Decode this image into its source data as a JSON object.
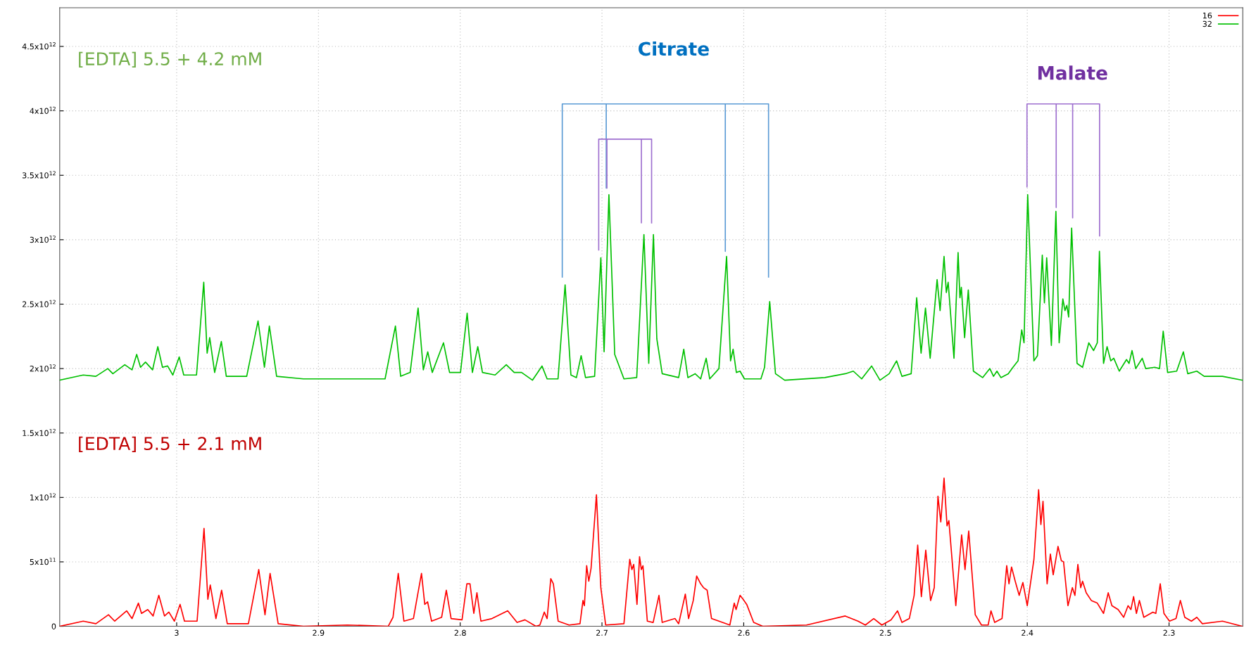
{
  "chart_data": {
    "type": "line",
    "xlim": [
      3.0825,
      2.248
    ],
    "ylim": [
      0,
      4800000000000.0
    ],
    "xticks": [
      3,
      2.9,
      2.8,
      2.7,
      2.6,
      2.5,
      2.4,
      2.3
    ],
    "yticks": [
      0,
      {
        "value": 500000000000.0,
        "label": "5x10$^{11}$"
      },
      {
        "value": 1000000000000.0,
        "label": "1x10$^{12}$"
      },
      {
        "value": 1500000000000.0,
        "label": "1.5x10$^{12}$"
      },
      {
        "value": 2000000000000.0,
        "label": "2x10$^{12}$"
      },
      {
        "value": 2500000000000.0,
        "label": "2.5x10$^{12}$"
      },
      {
        "value": 3000000000000.0,
        "label": "3x10$^{12}$"
      },
      {
        "value": 3500000000000.0,
        "label": "3.5x10$^{12}$"
      },
      {
        "value": 4000000000000.0,
        "label": "4x10$^{12}$"
      },
      {
        "value": 4500000000000.0,
        "label": "4.5x10$^{12}$"
      }
    ],
    "grid": true,
    "legend": "top right",
    "annotations": [
      "Citrate",
      "Malate",
      "[EDTA] 5.5 + 4.2 mM",
      "[EDTA] 5.5 + 2.1 mM"
    ],
    "series": [
      {
        "name": "16",
        "color": "#ff0000",
        "x": [
          3.0825,
          3.0659,
          3.057,
          3.0481,
          3.0437,
          3.0353,
          3.0315,
          3.027,
          3.0248,
          3.0204,
          3.0166,
          3.0126,
          3.0086,
          3.0055,
          3.0016,
          2.9976,
          2.9945,
          2.9856,
          2.9807,
          2.978,
          2.9763,
          2.9723,
          2.9683,
          2.9643,
          2.9494,
          2.9421,
          2.9377,
          2.9341,
          2.9284,
          2.9106,
          2.8796,
          2.8508,
          2.8474,
          2.8437,
          2.8397,
          2.833,
          2.8301,
          2.8273,
          2.825,
          2.823,
          2.8202,
          2.8131,
          2.8098,
          2.8064,
          2.7987,
          2.7953,
          2.7931,
          2.7904,
          2.7882,
          2.7854,
          2.7776,
          2.7665,
          2.7599,
          2.7543,
          2.7466,
          2.7438,
          2.7407,
          2.7387,
          2.7361,
          2.7343,
          2.7309,
          2.7232,
          2.7155,
          2.7134,
          2.7124,
          2.7108,
          2.7093,
          2.7077,
          2.7039,
          2.7008,
          2.6974,
          2.6845,
          2.6804,
          2.6789,
          2.6776,
          2.6753,
          2.6735,
          2.6722,
          2.6711,
          2.668,
          2.6639,
          2.6598,
          2.6575,
          2.6485,
          2.6459,
          2.6412,
          2.6389,
          2.6356,
          2.6332,
          2.6304,
          2.6284,
          2.6258,
          2.6227,
          2.6098,
          2.6067,
          2.6054,
          2.6026,
          2.6005,
          2.5979,
          2.593,
          2.5866,
          2.5557,
          2.5284,
          2.5194,
          2.5142,
          2.5083,
          2.5026,
          2.4961,
          2.4915,
          2.4884,
          2.4832,
          2.4798,
          2.4773,
          2.4747,
          2.4716,
          2.4682,
          2.4656,
          2.463,
          2.461,
          2.4587,
          2.4566,
          2.4553,
          2.4504,
          2.4463,
          2.4439,
          2.4413,
          2.4367,
          2.4323,
          2.4276,
          2.4256,
          2.423,
          2.4178,
          2.4145,
          2.4129,
          2.4111,
          2.4085,
          2.4057,
          2.4031,
          2.4,
          2.3953,
          2.392,
          2.3904,
          2.3889,
          2.386,
          2.3837,
          2.3817,
          2.3783,
          2.376,
          2.3744,
          2.3713,
          2.3682,
          2.3664,
          2.3643,
          2.3623,
          2.361,
          2.3584,
          2.3548,
          2.3506,
          2.3462,
          2.3429,
          2.3403,
          2.3359,
          2.332,
          2.3289,
          2.3269,
          2.325,
          2.323,
          2.3209,
          2.3178,
          2.3114,
          2.3093,
          2.3062,
          2.3036,
          2.2997,
          2.2951,
          2.292,
          2.2889,
          2.2842,
          2.2804,
          2.2765,
          2.2623,
          2.2483
        ],
        "values": [
          0,
          40000000000.0,
          20000000000.0,
          90000000000.0,
          40000000000.0,
          120000000000.0,
          60000000000.0,
          180000000000.0,
          100000000000.0,
          130000000000.0,
          80000000000.0,
          240000000000.0,
          80000000000.0,
          110000000000.0,
          40000000000.0,
          170000000000.0,
          40000000000.0,
          40000000000.0,
          760000000000.0,
          210000000000.0,
          320000000000.0,
          60000000000.0,
          280000000000.0,
          20000000000.0,
          20000000000.0,
          440000000000.0,
          90000000000.0,
          410000000000.0,
          20000000000.0,
          0,
          10000000000.0,
          0,
          70000000000.0,
          410000000000.0,
          40000000000.0,
          60000000000.0,
          240000000000.0,
          410000000000.0,
          170000000000.0,
          190000000000.0,
          40000000000.0,
          70000000000.0,
          280000000000.0,
          60000000000.0,
          50000000000.0,
          330000000000.0,
          330000000000.0,
          100000000000.0,
          260000000000.0,
          40000000000.0,
          60000000000.0,
          120000000000.0,
          30000000000.0,
          50000000000.0,
          0,
          10000000000.0,
          110000000000.0,
          60000000000.0,
          370000000000.0,
          330000000000.0,
          40000000000.0,
          10000000000.0,
          20000000000.0,
          200000000000.0,
          160000000000.0,
          470000000000.0,
          350000000000.0,
          450000000000.0,
          1020000000000.0,
          300000000000.0,
          10000000000.0,
          20000000000.0,
          520000000000.0,
          440000000000.0,
          480000000000.0,
          170000000000.0,
          540000000000.0,
          440000000000.0,
          470000000000.0,
          40000000000.0,
          30000000000.0,
          240000000000.0,
          30000000000.0,
          60000000000.0,
          20000000000.0,
          250000000000.0,
          60000000000.0,
          200000000000.0,
          390000000000.0,
          330000000000.0,
          300000000000.0,
          280000000000.0,
          60000000000.0,
          10000000000.0,
          180000000000.0,
          130000000000.0,
          240000000000.0,
          210000000000.0,
          170000000000.0,
          30000000000.0,
          0,
          10000000000.0,
          80000000000.0,
          40000000000.0,
          10000000000.0,
          60000000000.0,
          10000000000.0,
          50000000000.0,
          120000000000.0,
          30000000000.0,
          60000000000.0,
          240000000000.0,
          630000000000.0,
          230000000000.0,
          590000000000.0,
          200000000000.0,
          300000000000.0,
          1010000000000.0,
          810000000000.0,
          1150000000000.0,
          780000000000.0,
          820000000000.0,
          160000000000.0,
          710000000000.0,
          440000000000.0,
          740000000000.0,
          90000000000.0,
          10000000000.0,
          10000000000.0,
          120000000000.0,
          30000000000.0,
          60000000000.0,
          470000000000.0,
          330000000000.0,
          460000000000.0,
          350000000000.0,
          240000000000.0,
          340000000000.0,
          160000000000.0,
          520000000000.0,
          1060000000000.0,
          790000000000.0,
          970000000000.0,
          330000000000.0,
          560000000000.0,
          400000000000.0,
          620000000000.0,
          510000000000.0,
          500000000000.0,
          160000000000.0,
          300000000000.0,
          240000000000.0,
          480000000000.0,
          300000000000.0,
          350000000000.0,
          260000000000.0,
          200000000000.0,
          180000000000.0,
          100000000000.0,
          260000000000.0,
          160000000000.0,
          130000000000.0,
          70000000000.0,
          160000000000.0,
          130000000000.0,
          230000000000.0,
          100000000000.0,
          200000000000.0,
          70000000000.0,
          110000000000.0,
          100000000000.0,
          330000000000.0,
          100000000000.0,
          40000000000.0,
          60000000000.0,
          200000000000.0,
          70000000000.0,
          40000000000.0,
          70000000000.0,
          20000000000.0,
          40000000000.0,
          0
        ]
      },
      {
        "name": "32",
        "color": "#00c000",
        "x": [
          3.0825,
          3.0659,
          3.057,
          3.0486,
          3.045,
          3.0366,
          3.0315,
          3.0282,
          3.0255,
          3.022,
          3.017,
          3.0133,
          3.01,
          3.0064,
          3.0027,
          2.9982,
          2.995,
          2.986,
          2.9809,
          2.9785,
          2.9767,
          2.9732,
          2.9685,
          2.965,
          2.9506,
          2.9426,
          2.9381,
          2.9346,
          2.9295,
          2.9106,
          2.8885,
          2.853,
          2.8457,
          2.842,
          2.8353,
          2.8297,
          2.826,
          2.8229,
          2.8197,
          2.8118,
          2.8075,
          2.7998,
          2.7951,
          2.7914,
          2.7876,
          2.7843,
          2.7754,
          2.7675,
          2.7619,
          2.7567,
          2.749,
          2.7423,
          2.7387,
          2.731,
          2.726,
          2.7219,
          2.718,
          2.7147,
          2.7116,
          2.7052,
          2.7008,
          2.6985,
          2.6951,
          2.691,
          2.6845,
          2.6755,
          2.6704,
          2.667,
          2.6637,
          2.6613,
          2.6575,
          2.6459,
          2.6423,
          2.6394,
          2.6343,
          2.6304,
          2.6265,
          2.624,
          2.6175,
          2.6121,
          2.6093,
          2.6075,
          2.6052,
          2.6026,
          2.5995,
          2.5879,
          2.5853,
          2.5817,
          2.5776,
          2.5711,
          2.5428,
          2.5284,
          2.5227,
          2.5168,
          2.5098,
          2.5039,
          2.4974,
          2.4922,
          2.4884,
          2.4819,
          2.478,
          2.4749,
          2.4718,
          2.4685,
          2.4636,
          2.4615,
          2.4587,
          2.4571,
          2.4558,
          2.4517,
          2.4488,
          2.4475,
          2.4465,
          2.4442,
          2.4416,
          2.438,
          2.4315,
          2.4264,
          2.4238,
          2.4214,
          2.4186,
          2.4134,
          2.4101,
          2.4065,
          2.4039,
          2.4023,
          2.3997,
          2.3953,
          2.3928,
          2.3894,
          2.3879,
          2.3863,
          2.383,
          2.3798,
          2.3775,
          2.3749,
          2.3734,
          2.3721,
          2.3708,
          2.3687,
          2.3649,
          2.361,
          2.3566,
          2.3532,
          2.3506,
          2.3491,
          2.3462,
          2.3437,
          2.3411,
          2.339,
          2.3351,
          2.33,
          2.3282,
          2.3261,
          2.3235,
          2.3189,
          2.3165,
          2.3101,
          2.3067,
          2.3041,
          2.301,
          2.2946,
          2.2899,
          2.2868,
          2.2804,
          2.2752,
          2.2623,
          2.2483
        ],
        "values": [
          1910000000000.0,
          1950000000000.0,
          1940000000000.0,
          2000000000000.0,
          1960000000000.0,
          2030000000000.0,
          1990000000000.0,
          2110000000000.0,
          2010000000000.0,
          2050000000000.0,
          1990000000000.0,
          2170000000000.0,
          2010000000000.0,
          2020000000000.0,
          1950000000000.0,
          2090000000000.0,
          1950000000000.0,
          1950000000000.0,
          2670000000000.0,
          2120000000000.0,
          2240000000000.0,
          1970000000000.0,
          2210000000000.0,
          1940000000000.0,
          1940000000000.0,
          2370000000000.0,
          2010000000000.0,
          2330000000000.0,
          1940000000000.0,
          1920000000000.0,
          1920000000000.0,
          1920000000000.0,
          2330000000000.0,
          1940000000000.0,
          1970000000000.0,
          2470000000000.0,
          1990000000000.0,
          2130000000000.0,
          1970000000000.0,
          2200000000000.0,
          1970000000000.0,
          1970000000000.0,
          2430000000000.0,
          1970000000000.0,
          2170000000000.0,
          1970000000000.0,
          1950000000000.0,
          2030000000000.0,
          1970000000000.0,
          1970000000000.0,
          1910000000000.0,
          2020000000000.0,
          1920000000000.0,
          1920000000000.0,
          2650000000000.0,
          1950000000000.0,
          1930000000000.0,
          2100000000000.0,
          1930000000000.0,
          1940000000000.0,
          2860000000000.0,
          2130000000000.0,
          3350000000000.0,
          2110000000000.0,
          1920000000000.0,
          1930000000000.0,
          3040000000000.0,
          2040000000000.0,
          3040000000000.0,
          2230000000000.0,
          1960000000000.0,
          1930000000000.0,
          2150000000000.0,
          1930000000000.0,
          1960000000000.0,
          1920000000000.0,
          2080000000000.0,
          1920000000000.0,
          2000000000000.0,
          2870000000000.0,
          2060000000000.0,
          2150000000000.0,
          1970000000000.0,
          1980000000000.0,
          1920000000000.0,
          1920000000000.0,
          2010000000000.0,
          2520000000000.0,
          1960000000000.0,
          1910000000000.0,
          1930000000000.0,
          1960000000000.0,
          1980000000000.0,
          1920000000000.0,
          2020000000000.0,
          1910000000000.0,
          1960000000000.0,
          2060000000000.0,
          1940000000000.0,
          1960000000000.0,
          2550000000000.0,
          2120000000000.0,
          2470000000000.0,
          2080000000000.0,
          2690000000000.0,
          2450000000000.0,
          2870000000000.0,
          2590000000000.0,
          2670000000000.0,
          2080000000000.0,
          2900000000000.0,
          2550000000000.0,
          2630000000000.0,
          2240000000000.0,
          2610000000000.0,
          1980000000000.0,
          1930000000000.0,
          2000000000000.0,
          1940000000000.0,
          1980000000000.0,
          1930000000000.0,
          1960000000000.0,
          2010000000000.0,
          2060000000000.0,
          2300000000000.0,
          2200000000000.0,
          3350000000000.0,
          2060000000000.0,
          2100000000000.0,
          2880000000000.0,
          2510000000000.0,
          2860000000000.0,
          2180000000000.0,
          3220000000000.0,
          2200000000000.0,
          2540000000000.0,
          2450000000000.0,
          2490000000000.0,
          2400000000000.0,
          3090000000000.0,
          2040000000000.0,
          2010000000000.0,
          2200000000000.0,
          2140000000000.0,
          2200000000000.0,
          2910000000000.0,
          2040000000000.0,
          2170000000000.0,
          2060000000000.0,
          2080000000000.0,
          1980000000000.0,
          2070000000000.0,
          2040000000000.0,
          2140000000000.0,
          2000000000000.0,
          2080000000000.0,
          2000000000000.0,
          2010000000000.0,
          2000000000000.0,
          2290000000000.0,
          1970000000000.0,
          1980000000000.0,
          2130000000000.0,
          1960000000000.0,
          1980000000000.0,
          1940000000000.0,
          1940000000000.0,
          1910000000000.0
        ]
      },
      {
        "type": "line",
        "color": "#5b9bd5",
        "x": [
          2.728,
          2.728,
          2.697,
          2.697,
          2.697,
          2.613,
          2.613,
          2.613,
          2.5825,
          2.5825
        ],
        "values": [
          2710000000000.0,
          4054000000000.0,
          4054000000000.0,
          3400000000000.0,
          4054000000000.0,
          4054000000000.0,
          2910000000000.0,
          4054000000000.0,
          4054000000000.0,
          2710000000000.0
        ]
      },
      {
        "type": "line",
        "color": "#9e6fcf",
        "x": [
          2.7023,
          2.7023,
          2.6965,
          2.6965,
          2.6965,
          2.6722,
          2.6722,
          2.6722,
          2.665,
          2.665
        ],
        "values": [
          2920000000000.0,
          3780000000000.0,
          3780000000000.0,
          3400000000000.0,
          3780000000000.0,
          3780000000000.0,
          3130000000000.0,
          3780000000000.0,
          3780000000000.0,
          3130000000000.0
        ]
      },
      {
        "type": "line",
        "color": "#9e6fcf",
        "x": [
          2.4002,
          2.4002,
          2.3796,
          2.3796,
          2.3796,
          2.368,
          2.368,
          2.368,
          2.349,
          2.349
        ],
        "values": [
          3410000000000.0,
          4054000000000.0,
          4054000000000.0,
          3250000000000.0,
          4054000000000.0,
          4054000000000.0,
          3170000000000.0,
          4054000000000.0,
          4054000000000.0,
          3030000000000.0
        ]
      }
    ]
  }
}
